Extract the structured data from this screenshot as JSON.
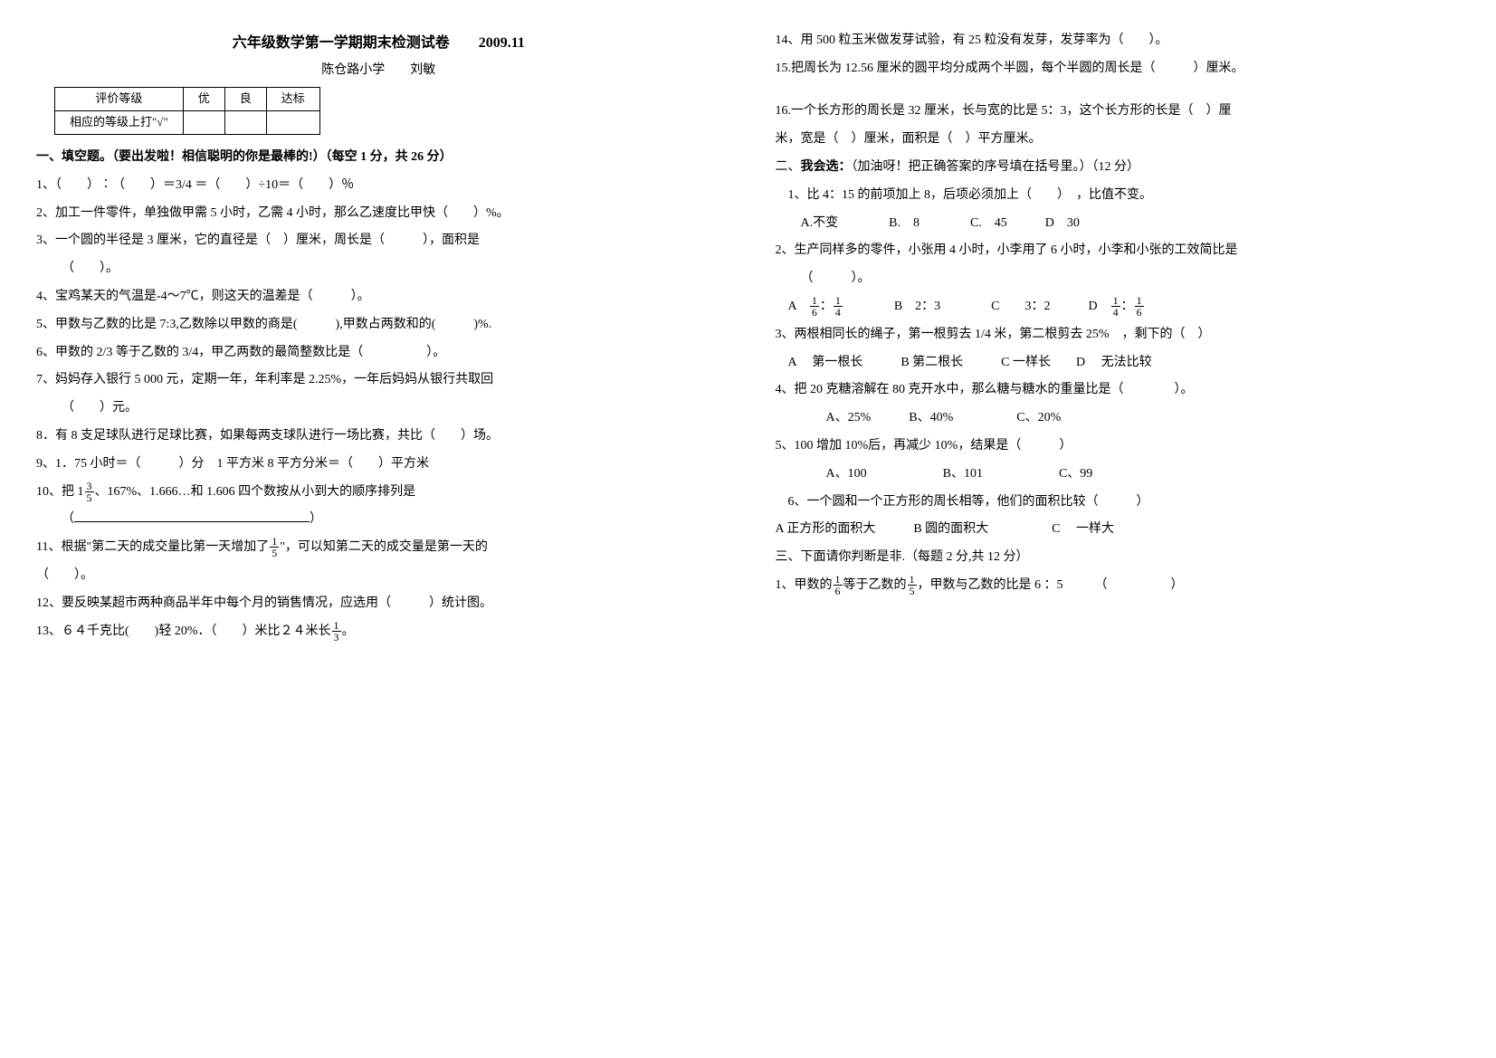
{
  "left": {
    "title": "六年级数学第一学期期末检测试卷　　2009.11",
    "school": "陈仓路小学　　刘敏",
    "gradeTable": {
      "headers": [
        "评价等级",
        "优",
        "良",
        "达标"
      ],
      "row": [
        "相应的等级上打\"√\"",
        "",
        "",
        ""
      ]
    },
    "sec1": "一、填空题。（要出发啦！相信聪明的你是最棒的!）（每空 1 分，共 26 分）",
    "q1": "1、（　　）∶（　　）＝3/4 ＝（　　）÷10＝（　　）％",
    "q2": "2、加工一件零件，单独做甲需 5 小时，乙需 4 小时，那么乙速度比甲快（　　）%。",
    "q3": "3、一个圆的半径是 3 厘米，它的直径是（　）厘米，周长是（　　　），面积是",
    "q3b": "（　　）。",
    "q4": "4、宝鸡某天的气温是-4～7℃，则这天的温差是（　　　）。",
    "q5": "5、甲数与乙数的比是 7:3,乙数除以甲数的商是(　　　),甲数占两数和的(　　　)%.",
    "q6": "6、甲数的 2/3 等于乙数的 3/4，甲乙两数的最简整数比是（　　　　　）。",
    "q7": "7、妈妈存入银行 5 000 元，定期一年，年利率是 2.25%，一年后妈妈从银行共取回",
    "q7b": "（　　）元。",
    "q8": "8．有 8 支足球队进行足球比赛，如果每两支球队进行一场比赛，共比（　　）场。",
    "q9": "9、1．75 小时＝（　　　）分　1 平方米 8 平方分米＝（　　）平方米",
    "q10a": "10、把 1",
    "q10b": "、167%、1.666…和 1.606 四个数按从小到大的顺序排列是",
    "q10c_open": "（",
    "q10c_close": "）",
    "q11a": "11、根据\"第二天的成交量比第一天增加了",
    "q11b": "\"，可以知第二天的成交量是第一天的",
    "q11c": "（　　）。",
    "q12": "12、要反映某超市两种商品半年中每个月的销售情况，应选用（　　　）统计图。",
    "q13a": "13、６４千克比(　　)轻 20%．（　　）米比２４米长",
    "q13b": "。"
  },
  "right": {
    "q14": "14、用 500 粒玉米做发芽试验，有 25 粒没有发芽，发芽率为（　　）。",
    "q15": "15.把周长为 12.56 厘米的圆平均分成两个半圆，每个半圆的周长是（　　　）厘米。",
    "q16a": "16.一个长方形的周长是 32 厘米，长与宽的比是 5：3，这个长方形的长是（　）厘",
    "q16b": "米，宽是（　）厘米，面积是（　）平方厘米。",
    "sec2a": "二、",
    "sec2b": "我会选：",
    "sec2c": "（加油呀！把正确答案的序号填在括号里。）（12 分）",
    "r1": "　1、比 4：15 的前项加上 8，后项必须加上（　　）　，比值不变。",
    "r1o": "　　A.不变　　　　B.　8　　　　C.　45　　　D　30",
    "r2": "2、生产同样多的零件，小张用 4 小时，小李用了 6 小时，小李和小张的工效简比是",
    "r2b": "（　　　）。",
    "r2o_a": "　A　",
    "r2o_b": "　　　　B　2：3　　　　C　　3：2　　　D　",
    "r3": "3、两根相同长的绳子，第一根剪去 1/4 米，第二根剪去 25%　，剩下的（　）",
    "r3o": "　A　 第一根长　　　B 第二根长　　　C 一样长　　D　 无法比较",
    "r4": "4、把 20 克糖溶解在 80 克开水中，那么糖与糖水的重量比是（　　　　）。",
    "r4o": "　　　　A、25%　　　B、40%　　　　　C、20%",
    "r5": "5、100 增加 10%后，再减少 10%，结果是（　　　）",
    "r5o": "　　　　A、100　　　　　　B、101　　　　　　C、99",
    "r6": "　6、一个圆和一个正方形的周长相等，他们的面积比较（　　　）",
    "r6o": "A 正方形的面积大　　　B 圆的面积大　　　　　C　 一样大",
    "sec3": "三、下面请你判断是非.（每题 2 分,共 12 分）",
    "j1a": "1、甲数的",
    "j1b": "等于乙数的",
    "j1c": "，甲数与乙数的比是 6 ：5　　　（　　　　　）"
  },
  "fracs": {
    "three_fifths": {
      "n": "3",
      "d": "5"
    },
    "one_fifth": {
      "n": "1",
      "d": "5"
    },
    "one_third": {
      "n": "1",
      "d": "3"
    },
    "one_sixth": {
      "n": "1",
      "d": "6"
    },
    "one_fourth": {
      "n": "1",
      "d": "4"
    }
  }
}
